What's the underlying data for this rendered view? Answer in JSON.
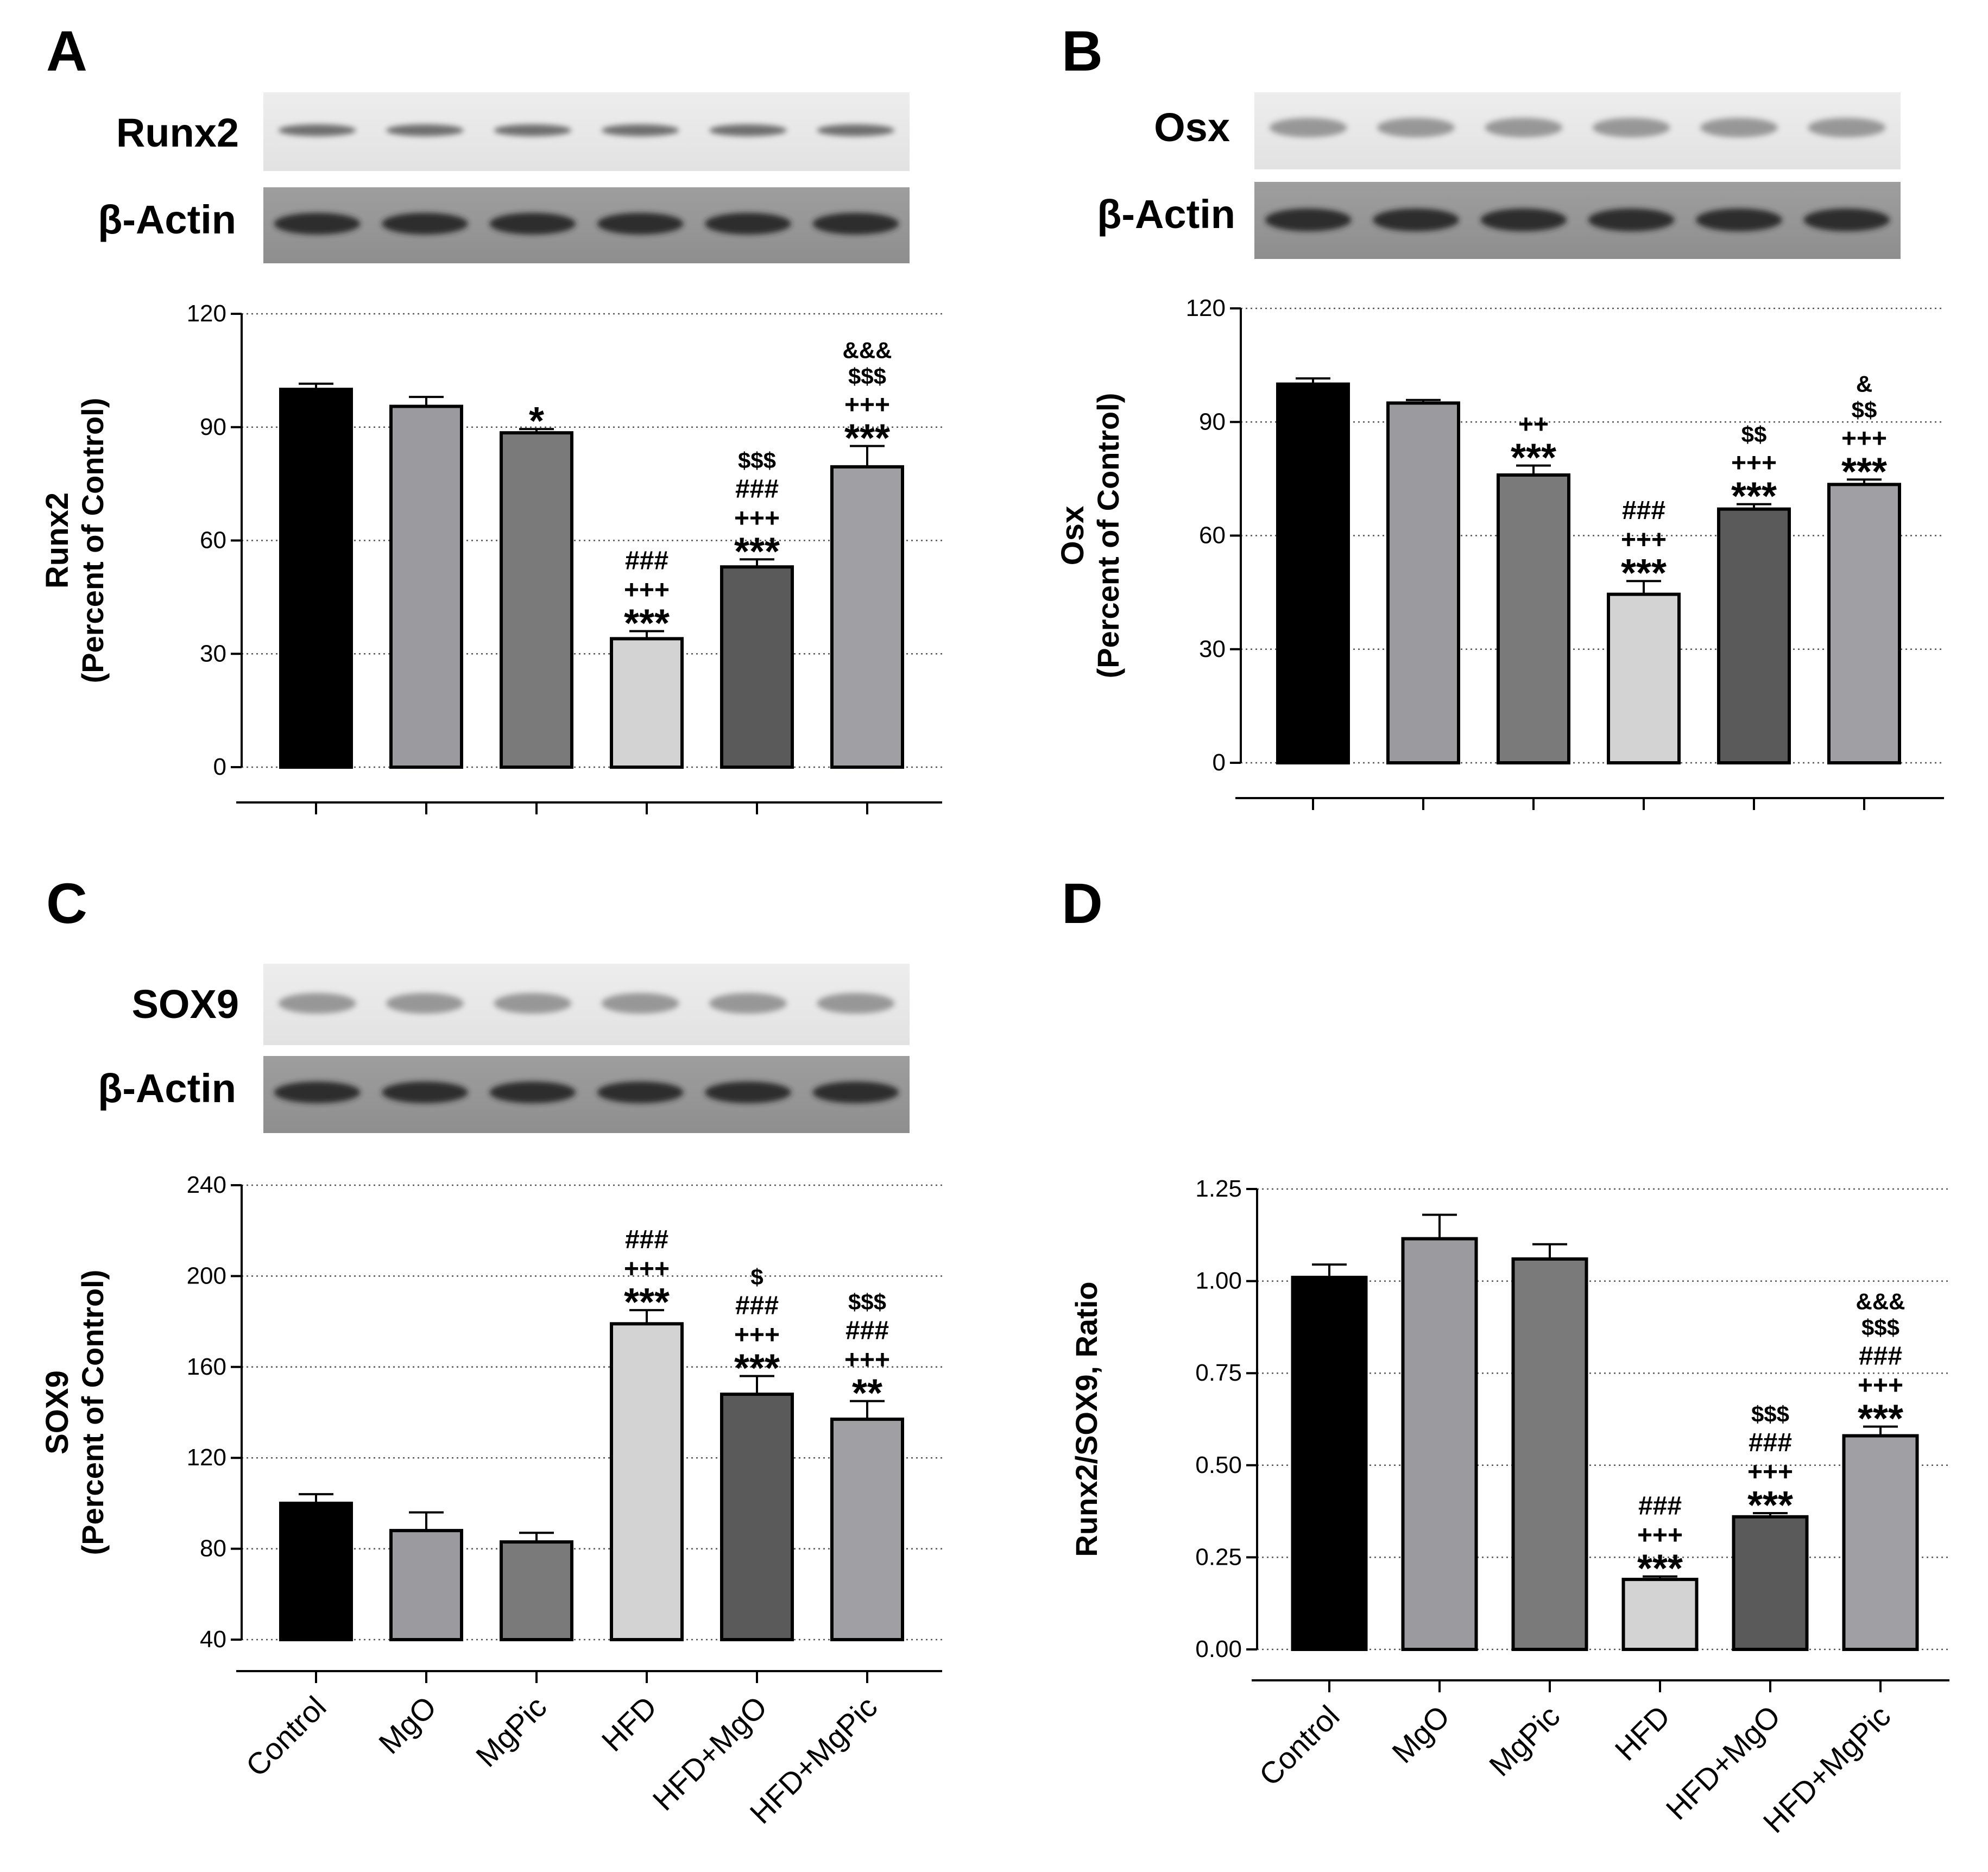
{
  "chart_data": [
    {
      "panel": "A",
      "type": "bar",
      "blot": {
        "protein_label": "Runx2",
        "loading_label": "β-Actin"
      },
      "ylabel": "Runx2",
      "ylabel_sub": "(Percent of Control)",
      "ylim": [
        0,
        120
      ],
      "yticks": [
        0,
        30,
        60,
        90,
        120
      ],
      "categories": [
        "Control",
        "MgO",
        "MgPic",
        "HFD",
        "HFD+MgO",
        "HFD+MgPic"
      ],
      "values": [
        100,
        95.5,
        88.5,
        34,
        53,
        79.5
      ],
      "errors": [
        1.5,
        2.5,
        1.0,
        2.0,
        2.0,
        5.5
      ],
      "bar_colors": [
        "#000000",
        "#9b9b9f",
        "#7a7a7a",
        "#d3d3d3",
        "#5a5a5a",
        "#a0a0a4"
      ],
      "annotations": [
        [],
        [],
        [
          "*"
        ],
        [
          "###",
          "+++",
          "***"
        ],
        [
          "$$$",
          "###",
          "+++",
          "***"
        ],
        [
          "&&&",
          "$$$",
          "+++",
          "***"
        ]
      ],
      "show_category_labels": false
    },
    {
      "panel": "B",
      "type": "bar",
      "blot": {
        "protein_label": "Osx",
        "loading_label": "β-Actin"
      },
      "ylabel": "Osx",
      "ylabel_sub": "(Percent of Control)",
      "ylim": [
        0,
        120
      ],
      "yticks": [
        0,
        30,
        60,
        90,
        120
      ],
      "categories": [
        "Control",
        "MgO",
        "MgPic",
        "HFD",
        "HFD+MgO",
        "HFD+MgPic"
      ],
      "values": [
        100,
        95,
        76,
        44.5,
        67,
        73.5
      ],
      "errors": [
        1.5,
        0.8,
        2.5,
        3.5,
        1.3,
        1.3
      ],
      "bar_colors": [
        "#000000",
        "#9b9b9f",
        "#7a7a7a",
        "#d3d3d3",
        "#5a5a5a",
        "#a0a0a4"
      ],
      "annotations": [
        [],
        [],
        [
          "++",
          "***"
        ],
        [
          "###",
          "+++",
          "***"
        ],
        [
          "$$",
          "+++",
          "***"
        ],
        [
          "&",
          "$$",
          "+++",
          "***"
        ]
      ],
      "show_category_labels": false
    },
    {
      "panel": "C",
      "type": "bar",
      "blot": {
        "protein_label": "SOX9",
        "loading_label": "β-Actin"
      },
      "ylabel": "SOX9",
      "ylabel_sub": "(Percent of Control)",
      "ylim": [
        40,
        240
      ],
      "yticks": [
        40,
        80,
        120,
        160,
        200,
        240
      ],
      "categories": [
        "Control",
        "MgO",
        "MgPic",
        "HFD",
        "HFD+MgO",
        "HFD+MgPic"
      ],
      "values": [
        100,
        88,
        83,
        179,
        148,
        137
      ],
      "errors": [
        4,
        8,
        4,
        6,
        8,
        8
      ],
      "bar_colors": [
        "#000000",
        "#9b9b9f",
        "#7a7a7a",
        "#d3d3d3",
        "#5a5a5a",
        "#a0a0a4"
      ],
      "annotations": [
        [],
        [],
        [],
        [
          "###",
          "+++",
          "***"
        ],
        [
          "$",
          "###",
          "+++",
          "***"
        ],
        [
          "$$$",
          "###",
          "+++",
          "**"
        ]
      ],
      "show_category_labels": true
    },
    {
      "panel": "D",
      "type": "bar",
      "ylabel": "Runx2/SOX9, Ratio",
      "ylim": [
        0,
        1.25
      ],
      "yticks": [
        "0.00",
        "0.25",
        "0.50",
        "0.75",
        "1.00",
        "1.25"
      ],
      "categories": [
        "Control",
        "MgO",
        "MgPic",
        "HFD",
        "HFD+MgO",
        "HFD+MgPic"
      ],
      "values": [
        1.01,
        1.115,
        1.06,
        0.19,
        0.36,
        0.58
      ],
      "errors": [
        0.035,
        0.065,
        0.04,
        0.008,
        0.01,
        0.025
      ],
      "bar_colors": [
        "#000000",
        "#9b9b9f",
        "#7a7a7a",
        "#d3d3d3",
        "#5a5a5a",
        "#a0a0a4"
      ],
      "annotations": [
        [],
        [],
        [],
        [
          "###",
          "+++",
          "***"
        ],
        [
          "$$$",
          "###",
          "+++",
          "***"
        ],
        [
          "&&&",
          "$$$",
          "###",
          "+++",
          "***"
        ]
      ],
      "show_category_labels": true
    }
  ]
}
